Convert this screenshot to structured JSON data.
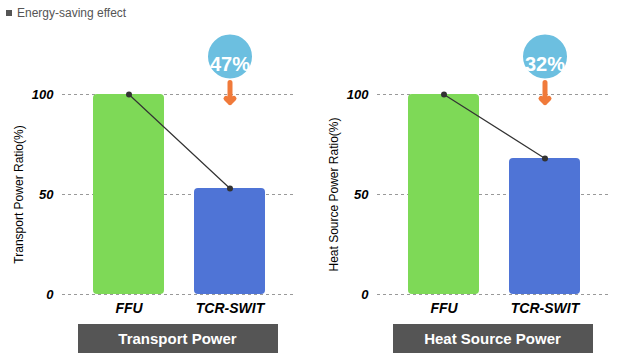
{
  "title": "Energy-saving effect",
  "chart_data": [
    {
      "type": "bar",
      "ylabel": "Transport Power Ratio(%)",
      "xlabel": "Transport Power",
      "categories": [
        "FFU",
        "TCR-SWIT"
      ],
      "values": [
        100,
        53
      ],
      "colors": [
        "#7ed957",
        "#4f74d6"
      ],
      "annotation": "47%",
      "ylim": [
        0,
        100
      ],
      "yticks": [
        0,
        50,
        100
      ],
      "grid": true
    },
    {
      "type": "bar",
      "ylabel": "Heat Source Power Ratio(%)",
      "xlabel": "Heat Source Power",
      "categories": [
        "FFU",
        "TCR-SWIT"
      ],
      "values": [
        100,
        68
      ],
      "colors": [
        "#7ed957",
        "#4f74d6"
      ],
      "annotation": "32%",
      "ylim": [
        0,
        100
      ],
      "yticks": [
        0,
        50,
        100
      ],
      "grid": true
    }
  ]
}
